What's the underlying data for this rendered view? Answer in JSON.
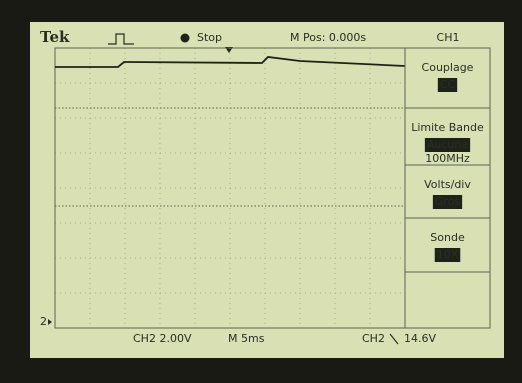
{
  "header": {
    "brand": "Tek",
    "status": "Stop",
    "position": "M Pos: 0.000s",
    "channel": "CH1"
  },
  "menu": [
    {
      "title": "Couplage",
      "values": [
        "CC"
      ]
    },
    {
      "title": "Limite Bande",
      "values": [
        "Aucune",
        "100MHz"
      ]
    },
    {
      "title": "Volts/div",
      "values": [
        "Gros"
      ]
    },
    {
      "title": "Sonde",
      "values": [
        "10X"
      ]
    }
  ],
  "ground_marker": "2",
  "footer": {
    "ch2": "CH2 2.00V",
    "timebase": "M 5ms",
    "trigger_channel": "CH2",
    "trigger_level": "14.6V"
  }
}
